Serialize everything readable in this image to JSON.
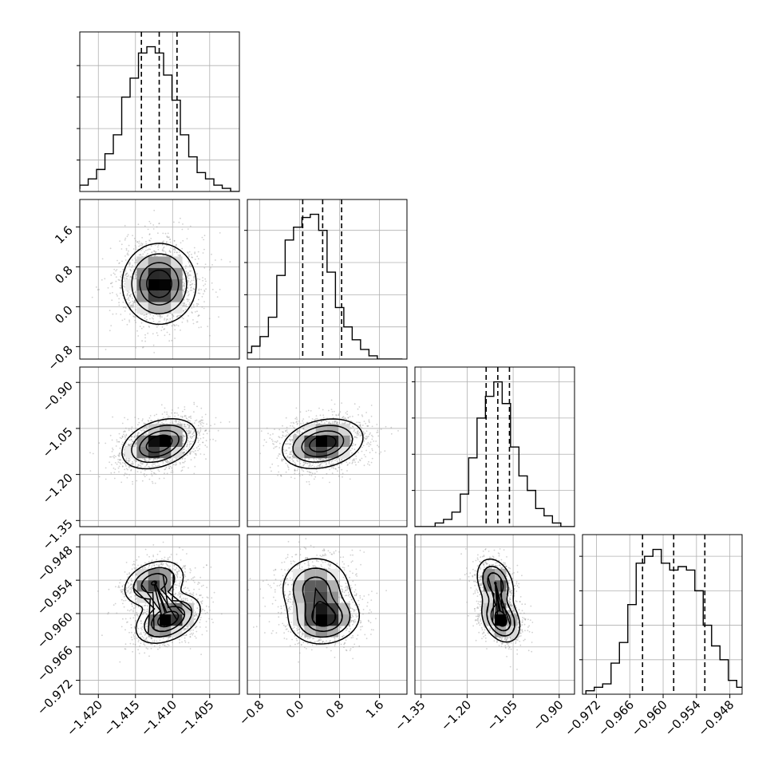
{
  "chart_data": {
    "type": "corner",
    "grid": true,
    "line_color": "#000000",
    "grid_color": "#b0b0b0",
    "scatter_color": "#9a9a9a",
    "parameters": [
      {
        "range": [
          -1.4225,
          -1.401
        ],
        "ticks": [
          -1.42,
          -1.415,
          -1.41,
          -1.405
        ],
        "tick_labels": [
          "−1.420",
          "−1.415",
          "−1.410",
          "−1.405"
        ],
        "quantiles": [
          -1.4142,
          -1.4118,
          -1.4094
        ],
        "mean": -1.4118,
        "sd": 0.0024,
        "hist": [
          1,
          2,
          4,
          7,
          12,
          18,
          30,
          36,
          44,
          46,
          44,
          37,
          29,
          18,
          11,
          6,
          4,
          2,
          1,
          0
        ]
      },
      {
        "range": [
          -1.05,
          2.15
        ],
        "ticks": [
          -0.8,
          0.0,
          0.8,
          1.6
        ],
        "tick_labels": [
          "−0.8",
          "0.0",
          "0.8",
          "1.6"
        ],
        "quantiles": [
          0.06,
          0.46,
          0.84
        ],
        "mean": 0.46,
        "sd": 0.39,
        "hist": [
          1,
          2,
          4,
          7,
          13,
          26,
          37,
          41,
          44,
          45,
          40,
          27,
          16,
          10,
          6,
          3,
          1,
          0,
          0,
          0
        ]
      },
      {
        "range": [
          -1.37,
          -0.85
        ],
        "ticks": [
          -1.35,
          -1.2,
          -1.05,
          -0.9
        ],
        "tick_labels": [
          "−1.35",
          "−1.20",
          "−1.05",
          "−0.90"
        ],
        "quantiles": [
          -1.138,
          -1.1,
          -1.062
        ],
        "mean": -1.1,
        "sd": 0.039,
        "hist": [
          0,
          0,
          0,
          1,
          2,
          4,
          9,
          19,
          30,
          36,
          40,
          34,
          22,
          14,
          10,
          5,
          3,
          1,
          0,
          0
        ]
      },
      {
        "range": [
          -0.9745,
          -0.9458
        ],
        "ticks": [
          -0.972,
          -0.966,
          -0.96,
          -0.954,
          -0.948
        ],
        "tick_labels": [
          "−0.972",
          "−0.966",
          "−0.960",
          "−0.954",
          "−0.948"
        ],
        "quantiles": [
          -0.9637,
          -0.9581,
          -0.9525
        ],
        "hist": [
          1,
          2,
          3,
          9,
          15,
          26,
          38,
          40,
          42,
          38,
          36,
          37,
          36,
          30,
          20,
          14,
          10,
          4,
          2,
          1
        ]
      }
    ],
    "pairs": [
      {
        "x": 0,
        "y": 1,
        "mode": "single",
        "rho": 0.0,
        "center": [
          -1.4118,
          0.46
        ],
        "scale": [
          0.0024,
          0.39
        ]
      },
      {
        "x": 0,
        "y": 2,
        "mode": "single",
        "rho": 0.35,
        "center": [
          -1.4118,
          -1.1
        ],
        "scale": [
          0.0024,
          0.039
        ]
      },
      {
        "x": 1,
        "y": 2,
        "mode": "single",
        "rho": 0.25,
        "center": [
          0.46,
          -1.1
        ],
        "scale": [
          0.39,
          0.039
        ]
      },
      {
        "x": 0,
        "y": 3,
        "mode": "bimodal",
        "components": [
          {
            "center": [
              -1.4125,
              -0.9545
            ],
            "scale": [
              0.002,
              0.002
            ],
            "rho": 0.3,
            "weight": 0.45
          },
          {
            "center": [
              -1.4106,
              -0.961
            ],
            "scale": [
              0.0021,
              0.0021
            ],
            "rho": 0.4,
            "weight": 0.55
          }
        ]
      },
      {
        "x": 1,
        "y": 3,
        "mode": "bimodal",
        "components": [
          {
            "center": [
              0.32,
              -0.9555
            ],
            "scale": [
              0.34,
              0.0028
            ],
            "rho": 0.0,
            "weight": 0.45
          },
          {
            "center": [
              0.5,
              -0.961
            ],
            "scale": [
              0.34,
              0.0022
            ],
            "rho": 0.1,
            "weight": 0.55
          }
        ]
      },
      {
        "x": 2,
        "y": 3,
        "mode": "bimodal",
        "components": [
          {
            "center": [
              -1.108,
              -0.9545
            ],
            "scale": [
              0.03,
              0.0022
            ],
            "rho": -0.3,
            "weight": 0.45
          },
          {
            "center": [
              -1.09,
              -0.961
            ],
            "scale": [
              0.03,
              0.002
            ],
            "rho": -0.3,
            "weight": 0.55
          }
        ]
      }
    ]
  }
}
